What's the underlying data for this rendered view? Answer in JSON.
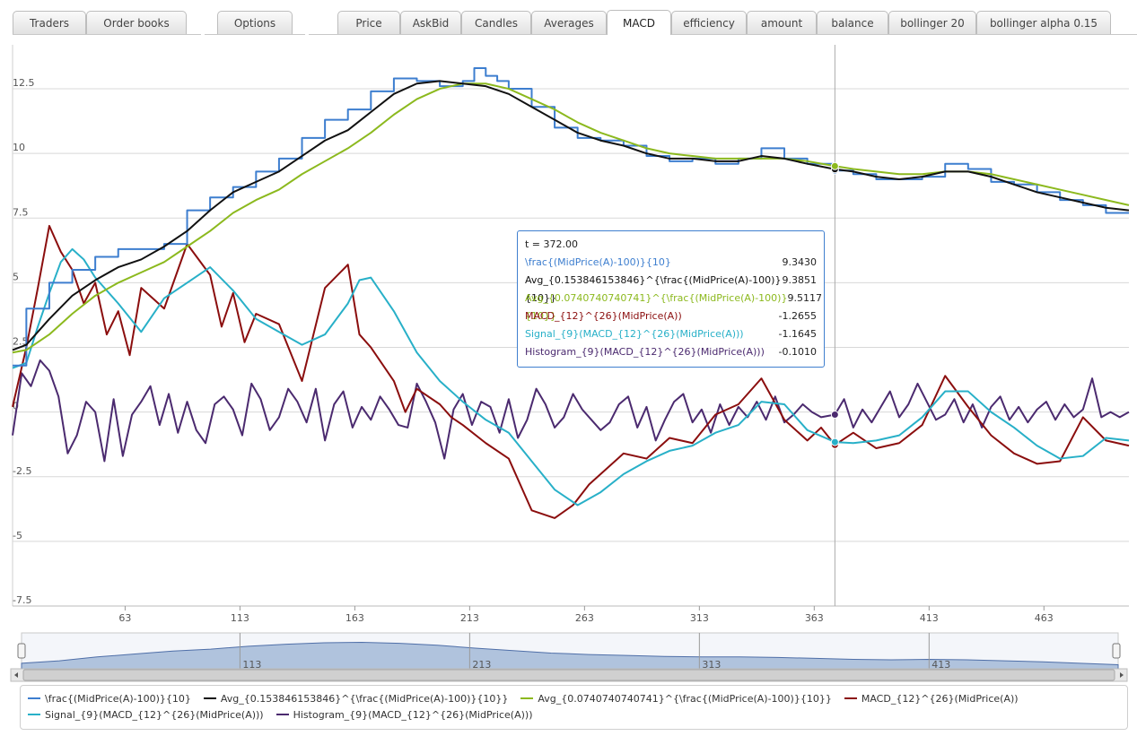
{
  "tabs": {
    "groups": [
      [
        "Traders",
        "Order books"
      ],
      [
        "Options"
      ],
      [
        "Price",
        "AskBid",
        "Candles",
        "Averages",
        "MACD",
        "efficiency",
        "amount",
        "balance",
        "bollinger 20",
        "bollinger alpha 0.15"
      ]
    ],
    "active": "MACD"
  },
  "tooltip": {
    "title": "t = 372.00",
    "rows": [
      {
        "label": "\\frac{(MidPrice(A)-100)}{10}",
        "value": "9.3430",
        "color": "#3d7ecf"
      },
      {
        "label": "Avg_{0.153846153846}^{\\frac{(MidPrice(A)-100)}{10}}",
        "value": "9.3851",
        "color": "#111111"
      },
      {
        "label": "Avg_{0.0740740740741}^{\\frac{(MidPrice(A)-100)}{10}}",
        "value": "9.5117",
        "color": "#8cb91e"
      },
      {
        "label": "MACD_{12}^{26}(MidPrice(A))",
        "value": "-1.2655",
        "color": "#8b0e0e"
      },
      {
        "label": "Signal_{9}(MACD_{12}^{26}(MidPrice(A)))",
        "value": "-1.1645",
        "color": "#28b0c8"
      },
      {
        "label": "Histogram_{9}(MACD_{12}^{26}(MidPrice(A)))",
        "value": "-0.1010",
        "color": "#4b2a6f"
      }
    ]
  },
  "navigator": {
    "tick_labels": [
      "113",
      "213",
      "313",
      "413"
    ]
  },
  "chart_data": {
    "type": "line",
    "x_ticks": [
      63,
      113,
      163,
      213,
      263,
      313,
      363,
      413,
      463
    ],
    "y_ticks": [
      -7.5,
      -5,
      -2.5,
      0,
      2.5,
      5,
      7.5,
      10,
      12.5
    ],
    "y_tick_labels": [
      "-7.5",
      "-5",
      "-2.5",
      "0",
      "2.5",
      "5",
      "7.5",
      "10",
      "12.5"
    ],
    "xlim": [
      14,
      500
    ],
    "ylim": [
      -7.5,
      14.2
    ],
    "crosshair_x": 372,
    "grid": true,
    "legend_position": "bottom",
    "series": [
      {
        "name": "\\frac{(MidPrice(A)-100)}{10}",
        "color": "#3d7ecf",
        "step": true,
        "x": [
          14,
          20,
          30,
          40,
          50,
          60,
          70,
          80,
          90,
          100,
          110,
          120,
          130,
          140,
          150,
          160,
          170,
          180,
          190,
          200,
          210,
          215,
          220,
          225,
          230,
          240,
          250,
          260,
          270,
          280,
          290,
          300,
          310,
          320,
          330,
          340,
          350,
          360,
          372,
          380,
          390,
          400,
          410,
          420,
          430,
          440,
          450,
          460,
          470,
          480,
          490,
          500
        ],
        "y": [
          1.8,
          4.0,
          5.0,
          5.5,
          6.0,
          6.3,
          6.3,
          6.5,
          7.8,
          8.3,
          8.7,
          9.3,
          9.8,
          10.6,
          11.3,
          11.7,
          12.4,
          12.9,
          12.8,
          12.6,
          12.8,
          13.3,
          13.0,
          12.8,
          12.5,
          11.8,
          11.0,
          10.6,
          10.5,
          10.3,
          9.9,
          9.7,
          9.8,
          9.6,
          9.8,
          10.2,
          9.8,
          9.6,
          9.34,
          9.2,
          9.0,
          9.0,
          9.1,
          9.6,
          9.4,
          8.9,
          8.8,
          8.5,
          8.2,
          8.0,
          7.7,
          7.7
        ]
      },
      {
        "name": "Avg_{0.153846153846}^{\\frac{(MidPrice(A)-100)}{10}}",
        "color": "#111111",
        "step": false,
        "x": [
          14,
          20,
          30,
          40,
          50,
          60,
          70,
          80,
          90,
          100,
          110,
          120,
          130,
          140,
          150,
          160,
          170,
          180,
          190,
          200,
          210,
          220,
          230,
          240,
          250,
          260,
          270,
          280,
          290,
          300,
          310,
          320,
          330,
          340,
          350,
          360,
          372,
          380,
          390,
          400,
          410,
          420,
          430,
          440,
          450,
          460,
          470,
          480,
          490,
          500
        ],
        "y": [
          2.4,
          2.6,
          3.6,
          4.5,
          5.1,
          5.6,
          5.9,
          6.4,
          7.0,
          7.8,
          8.5,
          8.9,
          9.3,
          9.9,
          10.5,
          10.9,
          11.6,
          12.3,
          12.7,
          12.8,
          12.7,
          12.6,
          12.3,
          11.8,
          11.3,
          10.8,
          10.5,
          10.3,
          10.0,
          9.8,
          9.8,
          9.7,
          9.7,
          9.9,
          9.8,
          9.6,
          9.39,
          9.3,
          9.1,
          9.0,
          9.1,
          9.3,
          9.3,
          9.1,
          8.8,
          8.5,
          8.3,
          8.1,
          7.9,
          7.8
        ]
      },
      {
        "name": "Avg_{0.0740740740741}^{\\frac{(MidPrice(A)-100)}{10}}",
        "color": "#8cb91e",
        "step": false,
        "x": [
          14,
          20,
          30,
          40,
          50,
          60,
          70,
          80,
          90,
          100,
          110,
          120,
          130,
          140,
          150,
          160,
          170,
          180,
          190,
          200,
          210,
          220,
          230,
          240,
          250,
          260,
          270,
          280,
          290,
          300,
          310,
          320,
          330,
          340,
          350,
          360,
          372,
          380,
          390,
          400,
          410,
          420,
          430,
          440,
          450,
          460,
          470,
          480,
          490,
          500
        ],
        "y": [
          2.3,
          2.4,
          3.0,
          3.8,
          4.5,
          5.0,
          5.4,
          5.8,
          6.4,
          7.0,
          7.7,
          8.2,
          8.6,
          9.2,
          9.7,
          10.2,
          10.8,
          11.5,
          12.1,
          12.5,
          12.7,
          12.7,
          12.5,
          12.1,
          11.7,
          11.2,
          10.8,
          10.5,
          10.2,
          10.0,
          9.9,
          9.8,
          9.8,
          9.8,
          9.8,
          9.7,
          9.51,
          9.4,
          9.3,
          9.2,
          9.2,
          9.3,
          9.3,
          9.2,
          9.0,
          8.8,
          8.6,
          8.4,
          8.2,
          8.0
        ]
      },
      {
        "name": "MACD_{12}^{26}(MidPrice(A))",
        "color": "#8b0e0e",
        "step": false,
        "x": [
          14,
          20,
          25,
          30,
          35,
          40,
          45,
          50,
          55,
          60,
          65,
          70,
          80,
          90,
          100,
          105,
          110,
          115,
          120,
          130,
          140,
          150,
          160,
          165,
          170,
          180,
          185,
          190,
          200,
          205,
          210,
          220,
          230,
          240,
          250,
          258,
          265,
          280,
          290,
          300,
          310,
          320,
          330,
          340,
          350,
          360,
          366,
          372,
          380,
          390,
          400,
          410,
          420,
          430,
          440,
          450,
          460,
          470,
          480,
          490,
          500
        ],
        "y": [
          0.2,
          2.5,
          4.8,
          7.2,
          6.2,
          5.5,
          4.2,
          5.0,
          3.0,
          3.9,
          2.2,
          4.8,
          4.0,
          6.5,
          5.3,
          3.3,
          4.6,
          2.7,
          3.8,
          3.4,
          1.2,
          4.8,
          5.7,
          3.0,
          2.5,
          1.2,
          0.0,
          0.9,
          0.3,
          -0.2,
          -0.5,
          -1.2,
          -1.8,
          -3.8,
          -4.1,
          -3.6,
          -2.8,
          -1.6,
          -1.8,
          -1.0,
          -1.2,
          -0.1,
          0.3,
          1.3,
          -0.3,
          -1.1,
          -0.6,
          -1.27,
          -0.8,
          -1.4,
          -1.2,
          -0.5,
          1.4,
          0.2,
          -0.9,
          -1.6,
          -2.0,
          -1.9,
          -0.2,
          -1.1,
          -1.3
        ]
      },
      {
        "name": "Signal_{9}(MACD_{12}^{26}(MidPrice(A)))",
        "color": "#28b0c8",
        "step": false,
        "x": [
          14,
          20,
          25,
          30,
          35,
          40,
          45,
          50,
          60,
          70,
          80,
          90,
          100,
          110,
          120,
          130,
          140,
          150,
          160,
          165,
          170,
          180,
          190,
          200,
          210,
          220,
          230,
          240,
          250,
          260,
          270,
          280,
          290,
          300,
          310,
          320,
          330,
          340,
          350,
          360,
          372,
          380,
          390,
          400,
          410,
          420,
          430,
          440,
          450,
          460,
          470,
          480,
          490,
          500
        ],
        "y": [
          1.7,
          1.9,
          3.3,
          4.6,
          5.8,
          6.3,
          5.9,
          5.2,
          4.2,
          3.1,
          4.4,
          5.0,
          5.6,
          4.7,
          3.6,
          3.1,
          2.6,
          3.0,
          4.2,
          5.1,
          5.2,
          3.9,
          2.3,
          1.2,
          0.4,
          -0.3,
          -0.8,
          -1.9,
          -3.0,
          -3.6,
          -3.1,
          -2.4,
          -1.9,
          -1.5,
          -1.3,
          -0.8,
          -0.5,
          0.4,
          0.3,
          -0.7,
          -1.16,
          -1.2,
          -1.1,
          -0.9,
          -0.2,
          0.8,
          0.8,
          0.0,
          -0.6,
          -1.3,
          -1.8,
          -1.7,
          -1.0,
          -1.1
        ]
      },
      {
        "name": "Histogram_{9}(MACD_{12}^{26}(MidPrice(A)))",
        "color": "#4b2a6f",
        "step": false,
        "x": [
          14,
          18,
          22,
          26,
          30,
          34,
          38,
          42,
          46,
          50,
          54,
          58,
          62,
          66,
          70,
          74,
          78,
          82,
          86,
          90,
          94,
          98,
          102,
          106,
          110,
          114,
          118,
          122,
          126,
          130,
          134,
          138,
          142,
          146,
          150,
          154,
          158,
          162,
          166,
          170,
          174,
          178,
          182,
          186,
          190,
          194,
          198,
          202,
          206,
          210,
          214,
          218,
          222,
          226,
          230,
          234,
          238,
          242,
          246,
          250,
          254,
          258,
          262,
          266,
          270,
          274,
          278,
          282,
          286,
          290,
          294,
          298,
          302,
          306,
          310,
          314,
          318,
          322,
          326,
          330,
          334,
          338,
          342,
          346,
          350,
          354,
          358,
          362,
          366,
          372,
          376,
          380,
          384,
          388,
          392,
          396,
          400,
          404,
          408,
          412,
          416,
          420,
          424,
          428,
          432,
          436,
          440,
          444,
          448,
          452,
          456,
          460,
          464,
          468,
          472,
          476,
          480,
          484,
          488,
          492,
          496,
          500
        ],
        "y": [
          -0.9,
          1.5,
          1.0,
          2.0,
          1.6,
          0.6,
          -1.6,
          -0.9,
          0.4,
          0.0,
          -1.9,
          0.5,
          -1.7,
          -0.1,
          0.4,
          1.0,
          -0.5,
          0.7,
          -0.8,
          0.4,
          -0.7,
          -1.2,
          0.3,
          0.6,
          0.1,
          -0.9,
          1.1,
          0.5,
          -0.7,
          -0.2,
          0.9,
          0.4,
          -0.4,
          0.9,
          -1.1,
          0.3,
          0.8,
          -0.6,
          0.2,
          -0.3,
          0.6,
          0.1,
          -0.5,
          -0.6,
          1.1,
          0.4,
          -0.4,
          -1.8,
          0.1,
          0.7,
          -0.5,
          0.4,
          0.2,
          -0.8,
          0.5,
          -1.0,
          -0.3,
          0.9,
          0.3,
          -0.6,
          -0.2,
          0.7,
          0.1,
          -0.3,
          -0.7,
          -0.4,
          0.3,
          0.6,
          -0.6,
          0.2,
          -1.1,
          -0.3,
          0.4,
          0.7,
          -0.4,
          0.1,
          -0.8,
          0.3,
          -0.5,
          0.2,
          -0.2,
          0.4,
          -0.3,
          0.6,
          -0.4,
          -0.1,
          0.3,
          0.0,
          -0.2,
          -0.1,
          0.5,
          -0.6,
          0.1,
          -0.4,
          0.2,
          0.8,
          -0.2,
          0.3,
          1.1,
          0.4,
          -0.3,
          -0.1,
          0.5,
          -0.4,
          0.3,
          -0.6,
          0.2,
          0.6,
          -0.3,
          0.2,
          -0.4,
          0.1,
          0.4,
          -0.3,
          0.3,
          -0.2,
          0.1,
          1.3,
          -0.2,
          0.0,
          -0.2,
          0.0
        ]
      }
    ],
    "navigator_series": [
      8.5,
      9.0,
      9.8,
      10.4,
      11.0,
      11.4,
      12.0,
      12.4,
      12.7,
      12.8,
      12.6,
      12.2,
      11.6,
      11.1,
      10.6,
      10.3,
      10.1,
      9.9,
      9.8,
      9.8,
      9.7,
      9.5,
      9.3,
      9.2,
      9.3,
      9.2,
      9.0,
      8.8,
      8.5,
      8.2
    ]
  }
}
